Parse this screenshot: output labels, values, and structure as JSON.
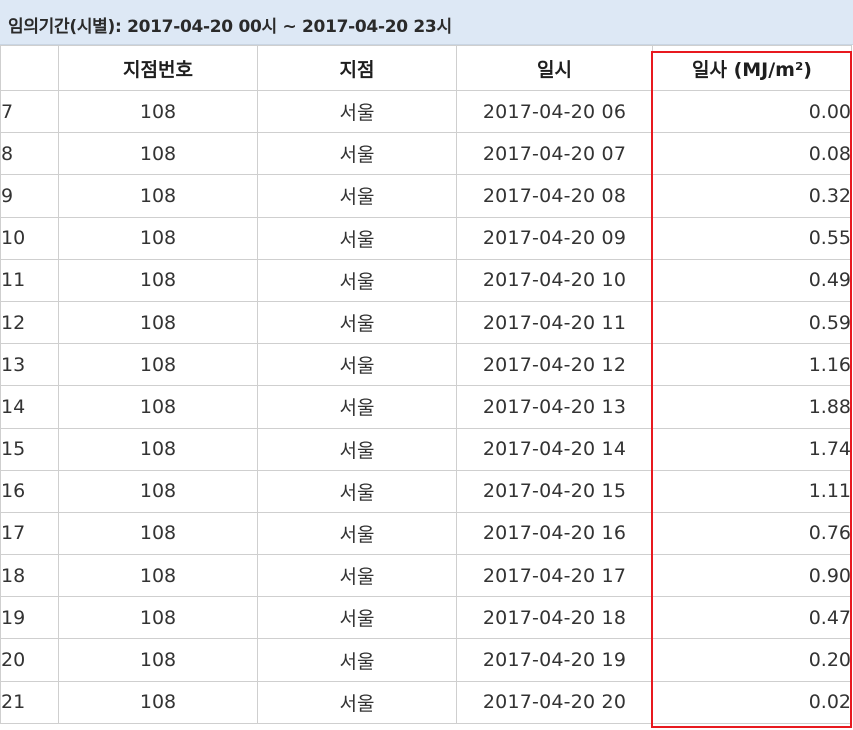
{
  "header": {
    "title": "임의기간(시별): 2017-04-20 00시 ~ 2017-04-20 23시"
  },
  "table": {
    "columns": [
      "",
      "지점번호",
      "지점",
      "일시",
      "일사 (MJ/m²)"
    ],
    "rows": [
      {
        "no": "7",
        "code": "108",
        "station": "서울",
        "datetime": "2017-04-20 06",
        "value": "0.00"
      },
      {
        "no": "8",
        "code": "108",
        "station": "서울",
        "datetime": "2017-04-20 07",
        "value": "0.08"
      },
      {
        "no": "9",
        "code": "108",
        "station": "서울",
        "datetime": "2017-04-20 08",
        "value": "0.32"
      },
      {
        "no": "10",
        "code": "108",
        "station": "서울",
        "datetime": "2017-04-20 09",
        "value": "0.55"
      },
      {
        "no": "11",
        "code": "108",
        "station": "서울",
        "datetime": "2017-04-20 10",
        "value": "0.49"
      },
      {
        "no": "12",
        "code": "108",
        "station": "서울",
        "datetime": "2017-04-20 11",
        "value": "0.59"
      },
      {
        "no": "13",
        "code": "108",
        "station": "서울",
        "datetime": "2017-04-20 12",
        "value": "1.16"
      },
      {
        "no": "14",
        "code": "108",
        "station": "서울",
        "datetime": "2017-04-20 13",
        "value": "1.88"
      },
      {
        "no": "15",
        "code": "108",
        "station": "서울",
        "datetime": "2017-04-20 14",
        "value": "1.74"
      },
      {
        "no": "16",
        "code": "108",
        "station": "서울",
        "datetime": "2017-04-20 15",
        "value": "1.11"
      },
      {
        "no": "17",
        "code": "108",
        "station": "서울",
        "datetime": "2017-04-20 16",
        "value": "0.76"
      },
      {
        "no": "18",
        "code": "108",
        "station": "서울",
        "datetime": "2017-04-20 17",
        "value": "0.90"
      },
      {
        "no": "19",
        "code": "108",
        "station": "서울",
        "datetime": "2017-04-20 18",
        "value": "0.47"
      },
      {
        "no": "20",
        "code": "108",
        "station": "서울",
        "datetime": "2017-04-20 19",
        "value": "0.20"
      },
      {
        "no": "21",
        "code": "108",
        "station": "서울",
        "datetime": "2017-04-20 20",
        "value": "0.02"
      }
    ]
  },
  "colors": {
    "highlight": "#e8191f",
    "station_link": "#1f3fd8",
    "title_bg": "#dde8f5"
  }
}
